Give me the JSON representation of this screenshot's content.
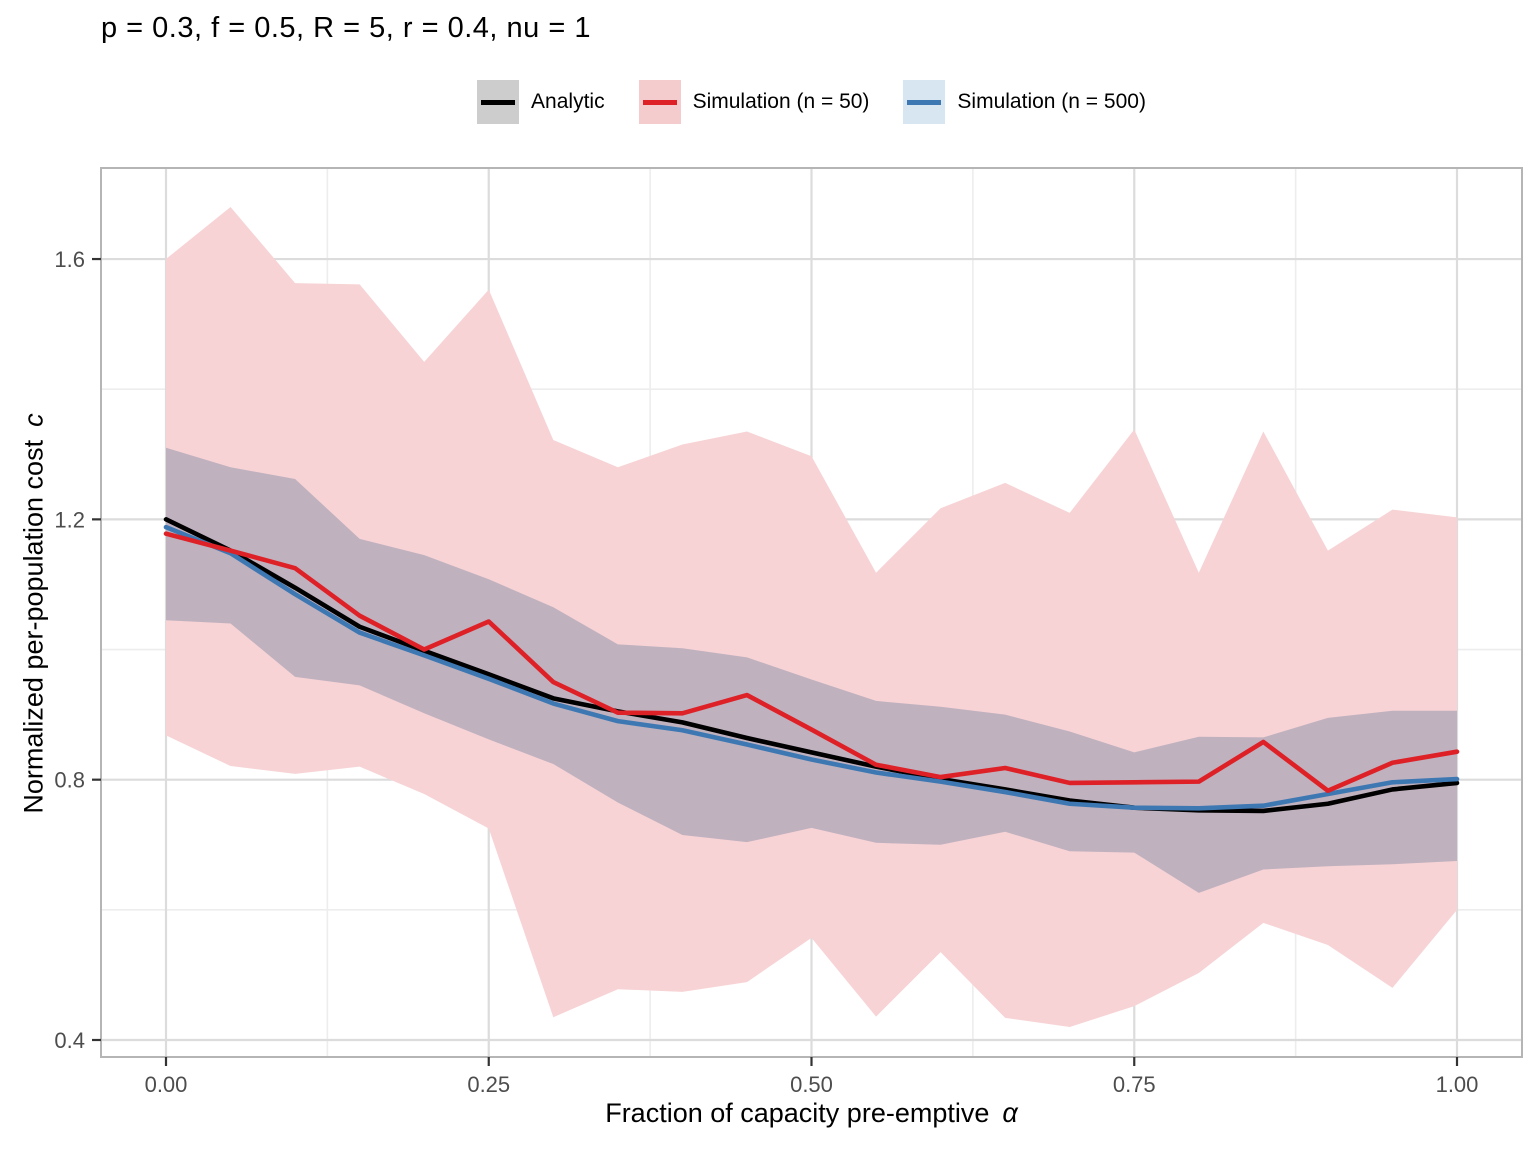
{
  "chart_data": {
    "type": "line",
    "title": "p = 0.3, f = 0.5, R = 5, r = 0.4, nu = 1",
    "xlabel": {
      "text": "Fraction of capacity pre-emptive",
      "symbol": "α"
    },
    "ylabel": {
      "text": "Normalized per-population cost",
      "symbol": "c"
    },
    "xlim": [
      -0.05,
      1.05
    ],
    "ylim": [
      0.374,
      1.74
    ],
    "grid": "on",
    "legend_position": "top",
    "x_ticks": {
      "values": [
        0.0,
        0.25,
        0.5,
        0.75,
        1.0
      ],
      "labels": [
        "0.00",
        "0.25",
        "0.50",
        "0.75",
        "1.00"
      ],
      "minor": [
        0.125,
        0.375,
        0.625,
        0.875
      ]
    },
    "y_ticks": {
      "values": [
        0.4,
        0.8,
        1.2,
        1.6
      ],
      "labels": [
        "0.4",
        "0.8",
        "1.2",
        "1.6"
      ],
      "minor": [
        0.6,
        1.0,
        1.4
      ]
    },
    "x": [
      0,
      0.05,
      0.1,
      0.15,
      0.2,
      0.25,
      0.3,
      0.35,
      0.4,
      0.45,
      0.5,
      0.55,
      0.6,
      0.65,
      0.7,
      0.75,
      0.8,
      0.85,
      0.9,
      0.95,
      1.0
    ],
    "series": [
      {
        "name": "Analytic",
        "line_color": "#000000",
        "values": [
          1.2,
          1.152,
          1.095,
          1.035,
          0.998,
          0.962,
          0.925,
          0.905,
          0.888,
          0.864,
          0.842,
          0.82,
          0.801,
          0.785,
          0.768,
          0.757,
          0.753,
          0.752,
          0.763,
          0.785,
          0.795
        ],
        "band_hi": [
          1.31,
          1.28,
          1.262,
          1.17,
          1.145,
          1.108,
          1.065,
          1.008,
          1.002,
          0.988,
          0.954,
          0.921,
          0.912,
          0.9,
          0.874,
          0.842,
          0.866,
          0.865,
          0.895,
          0.906,
          0.906
        ],
        "band_lo": [
          1.045,
          1.04,
          0.958,
          0.945,
          0.902,
          0.862,
          0.824,
          0.765,
          0.715,
          0.704,
          0.726,
          0.703,
          0.7,
          0.72,
          0.69,
          0.688,
          0.626,
          0.662,
          0.667,
          0.67,
          0.675
        ],
        "band_fill": "#c9b5c0"
      },
      {
        "name": "Simulation (n = 50)",
        "line_color": "#de2127",
        "values": [
          1.178,
          1.152,
          1.125,
          1.052,
          1.0,
          1.043,
          0.95,
          0.903,
          0.902,
          0.93,
          0.877,
          0.823,
          0.804,
          0.818,
          0.795,
          0.796,
          0.797,
          0.858,
          0.783,
          0.826,
          0.843
        ],
        "band_hi": [
          1.6,
          1.68,
          1.563,
          1.561,
          1.442,
          1.553,
          1.322,
          1.28,
          1.315,
          1.335,
          1.297,
          1.118,
          1.217,
          1.256,
          1.21,
          1.338,
          1.118,
          1.335,
          1.152,
          1.215,
          1.203
        ],
        "band_lo": [
          0.868,
          0.821,
          0.809,
          0.82,
          0.778,
          0.725,
          0.435,
          0.478,
          0.474,
          0.489,
          0.557,
          0.436,
          0.535,
          0.434,
          0.42,
          0.452,
          0.503,
          0.58,
          0.546,
          0.48,
          0.6
        ],
        "band_fill": "#f7d3d5"
      },
      {
        "name": "Simulation (n = 500)",
        "line_color": "#3e78b2",
        "values": [
          1.188,
          1.148,
          1.085,
          1.026,
          0.991,
          0.955,
          0.917,
          0.89,
          0.876,
          0.854,
          0.831,
          0.811,
          0.797,
          0.781,
          0.763,
          0.757,
          0.756,
          0.76,
          0.778,
          0.796,
          0.801
        ],
        "band_hi": [
          1.31,
          1.28,
          1.262,
          1.17,
          1.145,
          1.108,
          1.065,
          1.008,
          1.002,
          0.988,
          0.954,
          0.921,
          0.912,
          0.9,
          0.874,
          0.842,
          0.866,
          0.865,
          0.895,
          0.906,
          0.906
        ],
        "band_lo": [
          1.045,
          1.04,
          0.958,
          0.945,
          0.902,
          0.862,
          0.824,
          0.765,
          0.715,
          0.704,
          0.726,
          0.703,
          0.7,
          0.72,
          0.69,
          0.688,
          0.626,
          0.662,
          0.667,
          0.67,
          0.675
        ],
        "band_fill": "rgba(80,130,190,0.07)"
      }
    ],
    "legend": [
      {
        "label": "Analytic",
        "key_fill": "#cdcdcd",
        "key_line": "#000000"
      },
      {
        "label": "Simulation (n = 50)",
        "key_fill": "#f4ccce",
        "key_line": "#de2127"
      },
      {
        "label": "Simulation (n = 500)",
        "key_fill": "#d8e6f2",
        "key_line": "#3e78b2"
      }
    ],
    "colors": {
      "analytic": "#000000",
      "sim50": "#de2127",
      "sim500": "#3e78b2",
      "ribbon_sim50": "#f7d3d5",
      "ribbon_overlap": "#c9b5c0",
      "grid_major": "#dcdcdc",
      "grid_minor": "#ededed",
      "panel_border": "#b5b5b5",
      "tick_mark": "#333333",
      "tick_label": "#4d4d4d"
    }
  }
}
